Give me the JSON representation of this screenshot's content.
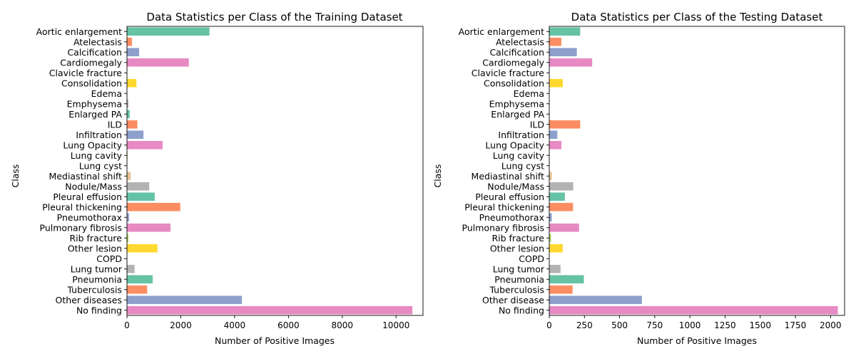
{
  "chart_data": [
    {
      "type": "bar",
      "orientation": "horizontal",
      "title": "Data Statistics per Class of the Training Dataset",
      "xlabel": "Number of Positive Images",
      "ylabel": "Class",
      "xlim": [
        0,
        11000
      ],
      "xticks": [
        0,
        2000,
        4000,
        6000,
        8000,
        10000
      ],
      "categories": [
        "Aortic enlargement",
        "Atelectasis",
        "Calcification",
        "Cardiomegaly",
        "Clavicle fracture",
        "Consolidation",
        "Edema",
        "Emphysema",
        "Enlarged PA",
        "ILD",
        "Infiltration",
        "Lung Opacity",
        "Lung cavity",
        "Lung cyst",
        "Mediastinal shift",
        "Nodule/Mass",
        "Pleural effusion",
        "Pleural thickening",
        "Pneumothorax",
        "Pulmonary fibrosis",
        "Rib fracture",
        "Other lesion",
        "COPD",
        "Lung tumor",
        "Pneumonia",
        "Tuberculosis",
        "Other diseases",
        "No finding"
      ],
      "values": [
        3067,
        186,
        452,
        2300,
        7,
        353,
        11,
        55,
        101,
        386,
        613,
        1322,
        21,
        5,
        140,
        826,
        1032,
        1981,
        76,
        1617,
        52,
        1134,
        4,
        283,
        956,
        751,
        4272,
        10606
      ]
    },
    {
      "type": "bar",
      "orientation": "horizontal",
      "title": "Data Statistics per Class of the Testing Dataset",
      "xlabel": "Number of Positive Images",
      "ylabel": "Class",
      "xlim": [
        0,
        2100
      ],
      "xticks": [
        0,
        250,
        500,
        750,
        1000,
        1250,
        1500,
        1750,
        2000
      ],
      "categories": [
        "Aortic enlargement",
        "Atelectasis",
        "Calcification",
        "Cardiomegaly",
        "Clavicle fracture",
        "Consolidation",
        "Edema",
        "Emphysema",
        "Enlarged PA",
        "ILD",
        "Infiltration",
        "Lung Opacity",
        "Lung cavity",
        "Lung cyst",
        "Mediastinal shift",
        "Nodule/Mass",
        "Pleural effusion",
        "Pleural thickening",
        "Pneumothorax",
        "Pulmonary fibrosis",
        "Rib fracture",
        "Other lesion",
        "COPD",
        "Lung tumor",
        "Pneumonia",
        "Tuberculosis",
        "Other disease",
        "No finding"
      ],
      "values": [
        220,
        86,
        196,
        305,
        0,
        96,
        0,
        0,
        0,
        220,
        57,
        86,
        1,
        0,
        18,
        170,
        111,
        169,
        18,
        212,
        12,
        96,
        0,
        80,
        246,
        166,
        659,
        2052
      ]
    }
  ],
  "palette": [
    "#66c2a5",
    "#fc8d62",
    "#8da0cb",
    "#e78ac3",
    "#a6d854",
    "#ffd92f",
    "#e5c494",
    "#b3b3b3"
  ]
}
